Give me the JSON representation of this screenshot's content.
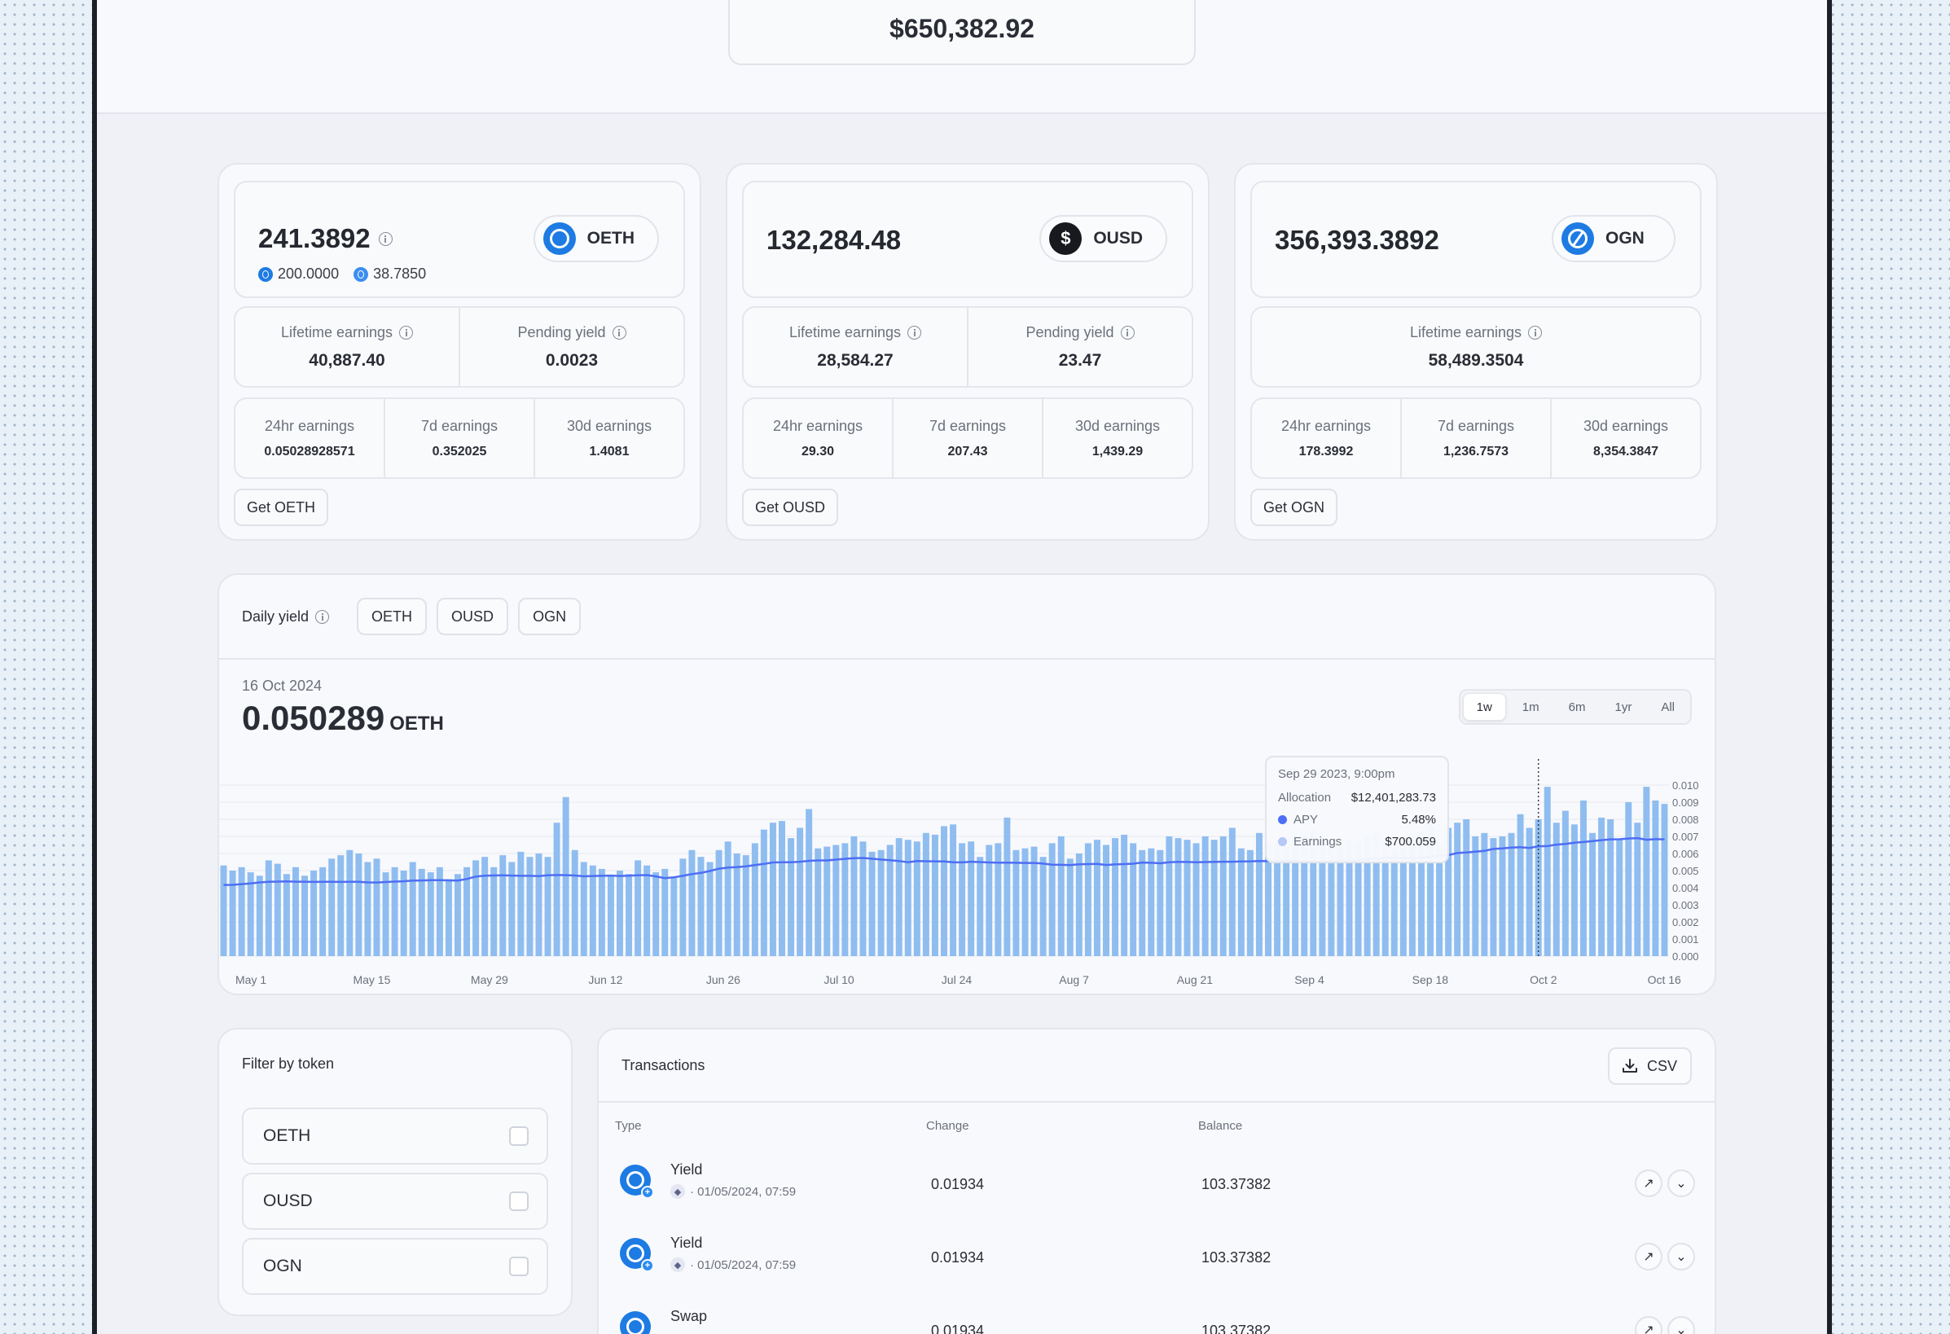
{
  "total_balance": "$650,382.92",
  "cards": [
    {
      "balance": "241.3892",
      "token": "OETH",
      "sub_balances": [
        "200.0000",
        "38.7850"
      ],
      "lifetime_label": "Lifetime earnings",
      "lifetime_value": "40,887.40",
      "pending_label": "Pending yield",
      "pending_value": "0.0023",
      "earn_24h_label": "24hr earnings",
      "earn_24h": "0.05028928571",
      "earn_7d_label": "7d earnings",
      "earn_7d": "0.352025",
      "earn_30d_label": "30d earnings",
      "earn_30d": "1.4081",
      "get_label": "Get OETH"
    },
    {
      "balance": "132,284.48",
      "token": "OUSD",
      "lifetime_label": "Lifetime earnings",
      "lifetime_value": "28,584.27",
      "pending_label": "Pending yield",
      "pending_value": "23.47",
      "earn_24h_label": "24hr earnings",
      "earn_24h": "29.30",
      "earn_7d_label": "7d earnings",
      "earn_7d": "207.43",
      "earn_30d_label": "30d earnings",
      "earn_30d": "1,439.29",
      "get_label": "Get OUSD"
    },
    {
      "balance": "356,393.3892",
      "token": "OGN",
      "lifetime_label": "Lifetime earnings",
      "lifetime_value": "58,489.3504",
      "earn_24h_label": "24hr earnings",
      "earn_24h": "178.3992",
      "earn_7d_label": "7d earnings",
      "earn_7d": "1,236.7573",
      "earn_30d_label": "30d earnings",
      "earn_30d": "8,354.3847",
      "get_label": "Get OGN"
    }
  ],
  "daily_yield": {
    "title": "Daily yield",
    "filters": [
      "OETH",
      "OUSD",
      "OGN"
    ],
    "date": "16 Oct 2024",
    "value": "0.050289",
    "unit": "OETH",
    "ranges": [
      "1w",
      "1m",
      "6m",
      "1yr",
      "All"
    ],
    "active_range": "1w",
    "tooltip": {
      "date": "Sep 29 2023, 9:00pm",
      "allocation_label": "Allocation",
      "allocation_value": "$12,401,283.73",
      "apy_label": "APY",
      "apy_value": "5.48%",
      "earnings_label": "Earnings",
      "earnings_value": "$700.059"
    }
  },
  "chart_data": {
    "type": "bar",
    "x_ticks": [
      "May 1",
      "May 15",
      "May 29",
      "Jun 12",
      "Jun 26",
      "Jul 10",
      "Jul 24",
      "Aug 7",
      "Aug 21",
      "Sep 4",
      "Sep 18",
      "Oct 2",
      "Oct 16"
    ],
    "y_ticks": [
      "0.010",
      "0.009",
      "0.008",
      "0.007",
      "0.006",
      "0.005",
      "0.004",
      "0.003",
      "0.002",
      "0.001",
      "0.000"
    ],
    "ylim": [
      0,
      0.01
    ],
    "colors": {
      "bars": "#8fbdf0",
      "line": "#4d6ef5",
      "apy_dot": "#4d6ef5",
      "earnings_dot": "#b6c8f7"
    },
    "series": [
      {
        "name": "Earnings",
        "values": [
          0.0053,
          0.005,
          0.0052,
          0.0049,
          0.0047,
          0.0056,
          0.0054,
          0.0048,
          0.0052,
          0.0047,
          0.005,
          0.0052,
          0.0057,
          0.0059,
          0.0062,
          0.006,
          0.0055,
          0.0057,
          0.0049,
          0.0052,
          0.005,
          0.0055,
          0.0051,
          0.0049,
          0.0052,
          0.0045,
          0.0048,
          0.0052,
          0.0056,
          0.0058,
          0.0052,
          0.0059,
          0.0055,
          0.0061,
          0.0058,
          0.006,
          0.0058,
          0.0078,
          0.0093,
          0.0062,
          0.0055,
          0.0053,
          0.0051,
          0.0047,
          0.005,
          0.0048,
          0.0056,
          0.0053,
          0.0049,
          0.0051,
          0.0046,
          0.0057,
          0.0062,
          0.0058,
          0.0055,
          0.0062,
          0.0067,
          0.006,
          0.0059,
          0.0066,
          0.0074,
          0.0078,
          0.0079,
          0.0069,
          0.0075,
          0.0086,
          0.0063,
          0.0064,
          0.0065,
          0.0066,
          0.007,
          0.0067,
          0.0061,
          0.0062,
          0.0065,
          0.0069,
          0.0068,
          0.0067,
          0.0072,
          0.0071,
          0.0076,
          0.0077,
          0.0066,
          0.0067,
          0.0058,
          0.0065,
          0.0066,
          0.0081,
          0.0062,
          0.0063,
          0.0064,
          0.0058,
          0.0066,
          0.007,
          0.0057,
          0.006,
          0.0066,
          0.0068,
          0.0065,
          0.0069,
          0.0071,
          0.0066,
          0.0062,
          0.0063,
          0.0062,
          0.007,
          0.0069,
          0.0068,
          0.0066,
          0.007,
          0.0068,
          0.007,
          0.0075,
          0.0063,
          0.0062,
          0.0072,
          0.0066,
          0.0065,
          0.0064,
          0.0068,
          0.0071,
          0.0073,
          0.0067,
          0.0066,
          0.0064,
          0.0068,
          0.0067,
          0.007,
          0.0072,
          0.0066,
          0.0062,
          0.0064,
          0.007,
          0.0073,
          0.0079,
          0.0065,
          0.0075,
          0.0078,
          0.008,
          0.007,
          0.0072,
          0.0069,
          0.007,
          0.0072,
          0.0083,
          0.0075,
          0.008,
          0.0099,
          0.0078,
          0.0085,
          0.0077,
          0.0091,
          0.0072,
          0.0081,
          0.008,
          0.0068,
          0.009,
          0.0078,
          0.0099,
          0.0091,
          0.0089
        ]
      }
    ]
  },
  "filter": {
    "title": "Filter by token",
    "options": [
      "OETH",
      "OUSD",
      "OGN"
    ]
  },
  "transactions": {
    "title": "Transactions",
    "csv_label": "CSV",
    "columns": [
      "Type",
      "Change",
      "Balance"
    ],
    "rows": [
      {
        "type": "Yield",
        "date": "· 01/05/2024, 07:59",
        "change": "0.01934",
        "balance": "103.37382"
      },
      {
        "type": "Yield",
        "date": "· 01/05/2024, 07:59",
        "change": "0.01934",
        "balance": "103.37382"
      },
      {
        "type": "Swap",
        "date": "",
        "change": "0.01934",
        "balance": "103.37382"
      }
    ]
  }
}
